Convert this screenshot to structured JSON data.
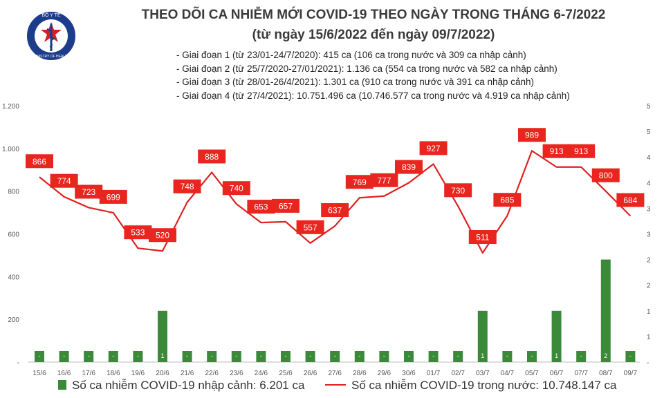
{
  "logo_text": {
    "top": "BỘ Y TẾ",
    "bottom": "MINISTRY OF HEALTH"
  },
  "colors": {
    "bar": "#3a8a3a",
    "line": "#e02020",
    "label_bg": "#e8251e",
    "axis_text": "#555555"
  },
  "chart_data": {
    "type": "bar+line",
    "title": "THEO DÕI CA NHIỄM MỚI COVID-19 THEO NGÀY TRONG THÁNG 6-7/2022",
    "subtitle": "(từ ngày 15/6/2022 đến ngày 09/7/2022)",
    "annotations": [
      "- Giai đoạn 1 (từ 23/01-24/7/2020): 415 ca (106 ca trong nước và 309 ca nhập cảnh)",
      "- Giai đoạn 2 (từ 25/7/2020-27/01/2021): 1.136 ca (554 ca trong nước và 582 ca nhập cảnh)",
      "- Giai đoạn 3 (từ 28/01-26/4/2021): 1.301 ca (910 ca trong nước và 391 ca nhập cảnh)",
      "- Giai đoạn 4 (từ 27/4/2021): 10.751.496 ca (10.746.577 ca trong nước và 4.919 ca nhập cảnh)"
    ],
    "categories": [
      "15/6",
      "16/6",
      "17/6",
      "18/6",
      "19/6",
      "20/6",
      "21/6",
      "22/6",
      "23/6",
      "24/6",
      "25/6",
      "26/6",
      "27/6",
      "28/6",
      "29/6",
      "30/6",
      "01/7",
      "02/7",
      "03/7",
      "04/7",
      "05/7",
      "06/7",
      "07/7",
      "08/7",
      "09/7"
    ],
    "series": [
      {
        "name": "Số ca nhiễm COVID-19 nhập cảnh: 6.201 ca",
        "type": "bar",
        "axis": "right",
        "values": [
          0,
          0,
          0,
          0,
          0,
          1,
          0,
          0,
          0,
          0,
          0,
          0,
          0,
          0,
          0,
          0,
          0,
          0,
          1,
          0,
          0,
          1,
          0,
          2,
          0
        ],
        "labels": [
          "-",
          "-",
          "-",
          "-",
          "-",
          "1",
          "-",
          "-",
          "-",
          "-",
          "-",
          "-",
          "-",
          "-",
          "-",
          "-",
          "-",
          "-",
          "1",
          "-",
          "-",
          "1",
          "-",
          "2",
          "-"
        ]
      },
      {
        "name": "Số ca nhiễm COVID-19 trong nước: 10.748.147 ca",
        "type": "line",
        "axis": "left",
        "values": [
          866,
          774,
          723,
          699,
          533,
          520,
          748,
          888,
          740,
          653,
          657,
          557,
          637,
          769,
          777,
          839,
          927,
          730,
          511,
          685,
          989,
          913,
          913,
          800,
          684
        ]
      }
    ],
    "y_left": {
      "ticks": [
        "-",
        "200",
        "400",
        "600",
        "800",
        "1.000",
        "1.200"
      ],
      "tick_values": [
        0,
        200,
        400,
        600,
        800,
        1000,
        1200
      ],
      "ylim": [
        0,
        1200
      ]
    },
    "y_right": {
      "ticks": [
        "-",
        "1",
        "1",
        "2",
        "2",
        "3",
        "3",
        "4",
        "4",
        "5",
        "5"
      ],
      "ylim": [
        0,
        5
      ]
    },
    "grid": false,
    "legend": "bottom"
  }
}
